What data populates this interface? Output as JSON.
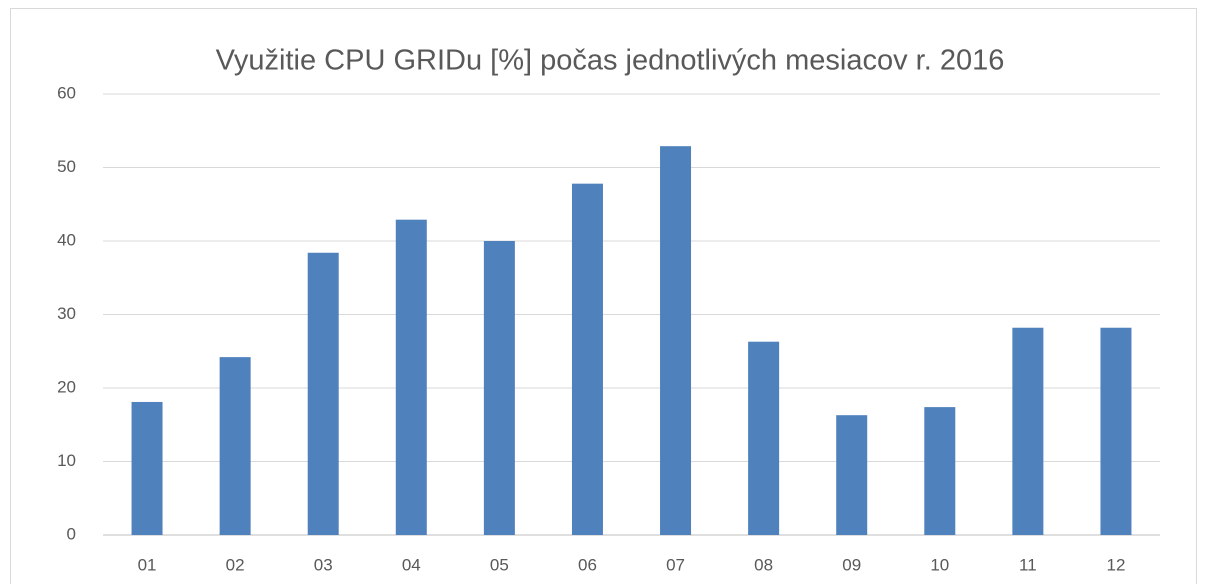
{
  "chart_data": {
    "type": "bar",
    "title": "Využitie CPU GRIDu [%] počas jednotlivých mesiacov r. 2016",
    "categories": [
      "01",
      "02",
      "03",
      "04",
      "05",
      "06",
      "07",
      "08",
      "09",
      "10",
      "11",
      "12"
    ],
    "values": [
      18.1,
      24.2,
      38.4,
      42.9,
      40.0,
      47.8,
      52.9,
      26.3,
      16.3,
      17.4,
      28.2,
      28.2
    ],
    "color": "#4f81bd",
    "ylim": [
      0,
      60
    ],
    "yticks": [
      0,
      10,
      20,
      30,
      40,
      50,
      60
    ],
    "grid": true
  }
}
